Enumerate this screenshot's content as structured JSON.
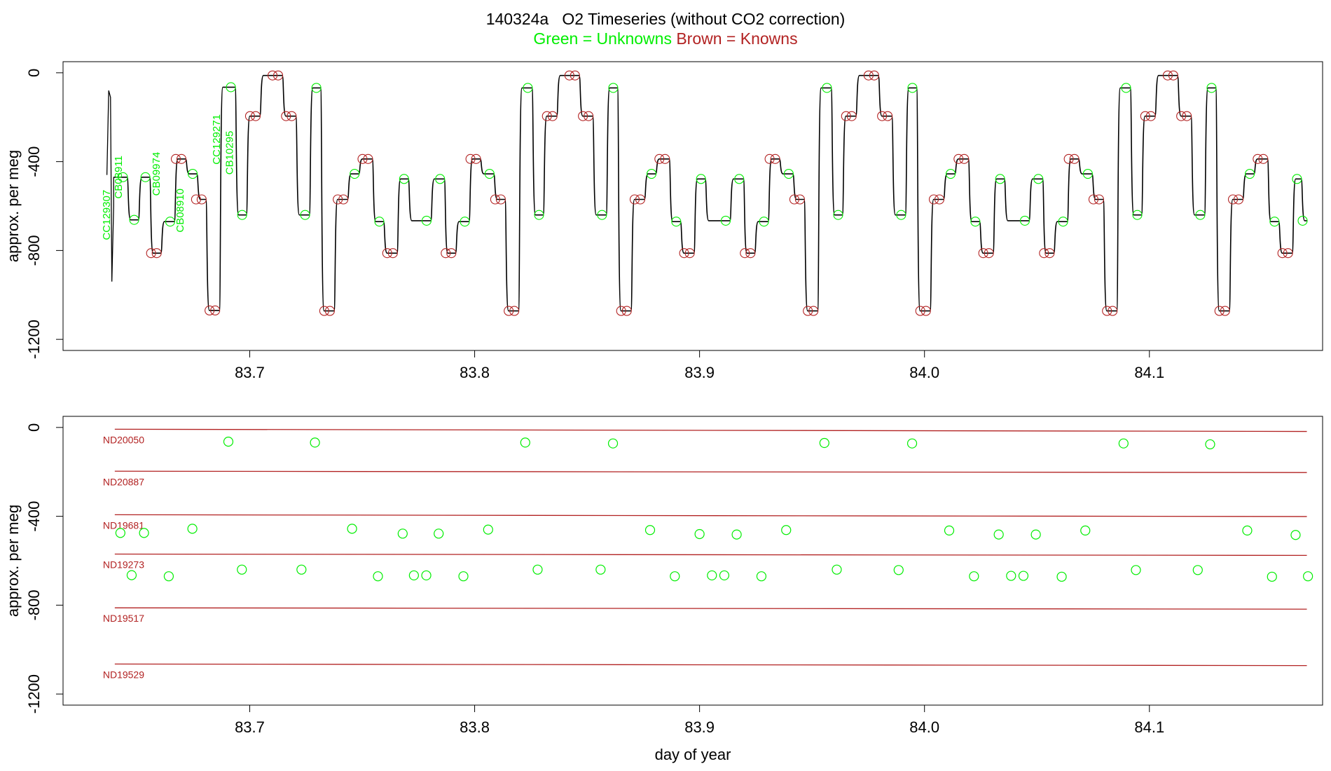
{
  "title": "140324a   O2 Timeseries (without CO2 correction)",
  "subtitle": {
    "unknowns": "Green = Unknowns",
    "knowns": "Brown = Knowns"
  },
  "colors": {
    "unknowns": "#00ee00",
    "knowns": "#b22222",
    "trace": "#000000",
    "axis": "#000000"
  },
  "chart_data": [
    {
      "type": "line",
      "ylabel": "approx. per meg",
      "xlabel": "",
      "xlim": [
        83.617,
        84.177
      ],
      "ylim": [
        -1250,
        50
      ],
      "xticks": [
        83.7,
        83.8,
        83.9,
        84.0,
        84.1
      ],
      "xtick_labels": [
        "83.7",
        "83.8",
        "83.9",
        "84.0",
        "84.1"
      ],
      "yticks": [
        0,
        -400,
        -800,
        -1200
      ],
      "ytick_labels": [
        "0",
        "-400",
        "-800",
        "-1200"
      ],
      "spike": {
        "x_range": [
          83.6365,
          83.6395
        ],
        "y_range": [
          -940,
          -80
        ]
      },
      "steps": [
        {
          "x0": 83.6395,
          "x1": 83.6455,
          "y": -470,
          "kind": "unknown"
        },
        {
          "x0": 83.6455,
          "x1": 83.6505,
          "y": -662,
          "kind": "unknown"
        },
        {
          "x0": 83.6505,
          "x1": 83.6555,
          "y": -470,
          "kind": "unknown"
        },
        {
          "x0": 83.6555,
          "x1": 83.6605,
          "y": -812,
          "kind": "known"
        },
        {
          "x0": 83.6605,
          "x1": 83.6665,
          "y": -670,
          "kind": "unknown"
        },
        {
          "x0": 83.6665,
          "x1": 83.6715,
          "y": -388,
          "kind": "known"
        },
        {
          "x0": 83.6715,
          "x1": 83.6765,
          "y": -455,
          "kind": "unknown"
        },
        {
          "x0": 83.6765,
          "x1": 83.6805,
          "y": -570,
          "kind": "known"
        },
        {
          "x0": 83.6805,
          "x1": 83.6865,
          "y": -1070,
          "kind": "known"
        },
        {
          "x0": 83.6865,
          "x1": 83.6935,
          "y": -65,
          "kind": "unknown"
        },
        {
          "x0": 83.6935,
          "x1": 83.6985,
          "y": -640,
          "kind": "unknown"
        },
        {
          "x0": 83.6985,
          "x1": 83.7045,
          "y": -195,
          "kind": "known"
        },
        {
          "x0": 83.7045,
          "x1": 83.7145,
          "y": -12,
          "kind": "known"
        },
        {
          "x0": 83.7145,
          "x1": 83.7205,
          "y": -195,
          "kind": "known"
        },
        {
          "x0": 83.7205,
          "x1": 83.7265,
          "y": -640,
          "kind": "unknown"
        },
        {
          "x0": 83.7265,
          "x1": 83.7315,
          "y": -68,
          "kind": "unknown"
        },
        {
          "x0": 83.7315,
          "x1": 83.7375,
          "y": -1072,
          "kind": "known"
        },
        {
          "x0": 83.7375,
          "x1": 83.7435,
          "y": -570,
          "kind": "known"
        },
        {
          "x0": 83.7435,
          "x1": 83.7485,
          "y": -455,
          "kind": "unknown"
        },
        {
          "x0": 83.7485,
          "x1": 83.7545,
          "y": -388,
          "kind": "known"
        },
        {
          "x0": 83.7545,
          "x1": 83.7595,
          "y": -670,
          "kind": "unknown"
        },
        {
          "x0": 83.7595,
          "x1": 83.7655,
          "y": -812,
          "kind": "known"
        },
        {
          "x0": 83.7655,
          "x1": 83.7705,
          "y": -478,
          "kind": "unknown"
        },
        {
          "x0": 83.7705,
          "x1": 83.7805,
          "y": -666,
          "kind": "unknown"
        },
        {
          "x0": 83.7805,
          "x1": 83.7865,
          "y": -478,
          "kind": "unknown"
        },
        {
          "x0": 83.7865,
          "x1": 83.7915,
          "y": -812,
          "kind": "known"
        },
        {
          "x0": 83.7915,
          "x1": 83.7975,
          "y": -670,
          "kind": "unknown"
        },
        {
          "x0": 83.7975,
          "x1": 83.8025,
          "y": -388,
          "kind": "known"
        },
        {
          "x0": 83.8025,
          "x1": 83.8085,
          "y": -455,
          "kind": "unknown"
        },
        {
          "x0": 83.8085,
          "x1": 83.8135,
          "y": -570,
          "kind": "known"
        },
        {
          "x0": 83.8135,
          "x1": 83.8195,
          "y": -1072,
          "kind": "known"
        },
        {
          "x0": 83.8195,
          "x1": 83.8255,
          "y": -68,
          "kind": "unknown"
        },
        {
          "x0": 83.8255,
          "x1": 83.8305,
          "y": -640,
          "kind": "unknown"
        },
        {
          "x0": 83.8305,
          "x1": 83.8365,
          "y": -195,
          "kind": "known"
        },
        {
          "x0": 83.8365,
          "x1": 83.8465,
          "y": -12,
          "kind": "known"
        },
        {
          "x0": 83.8465,
          "x1": 83.8525,
          "y": -195,
          "kind": "known"
        },
        {
          "x0": 83.8525,
          "x1": 83.8585,
          "y": -640,
          "kind": "unknown"
        },
        {
          "x0": 83.8585,
          "x1": 83.8635,
          "y": -68,
          "kind": "unknown"
        },
        {
          "x0": 83.8635,
          "x1": 83.8695,
          "y": -1072,
          "kind": "known"
        },
        {
          "x0": 83.8695,
          "x1": 83.8755,
          "y": -570,
          "kind": "known"
        },
        {
          "x0": 83.8755,
          "x1": 83.8805,
          "y": -455,
          "kind": "unknown"
        },
        {
          "x0": 83.8805,
          "x1": 83.8865,
          "y": -388,
          "kind": "known"
        },
        {
          "x0": 83.8865,
          "x1": 83.8915,
          "y": -670,
          "kind": "unknown"
        },
        {
          "x0": 83.8915,
          "x1": 83.8975,
          "y": -812,
          "kind": "known"
        },
        {
          "x0": 83.8975,
          "x1": 83.9025,
          "y": -478,
          "kind": "unknown"
        },
        {
          "x0": 83.9025,
          "x1": 83.9135,
          "y": -666,
          "kind": "unknown"
        },
        {
          "x0": 83.9135,
          "x1": 83.9195,
          "y": -478,
          "kind": "unknown"
        },
        {
          "x0": 83.9195,
          "x1": 83.9245,
          "y": -812,
          "kind": "known"
        },
        {
          "x0": 83.9245,
          "x1": 83.9305,
          "y": -670,
          "kind": "unknown"
        },
        {
          "x0": 83.9305,
          "x1": 83.9355,
          "y": -388,
          "kind": "known"
        },
        {
          "x0": 83.9355,
          "x1": 83.9415,
          "y": -455,
          "kind": "unknown"
        },
        {
          "x0": 83.9415,
          "x1": 83.9465,
          "y": -570,
          "kind": "known"
        },
        {
          "x0": 83.9465,
          "x1": 83.9525,
          "y": -1072,
          "kind": "known"
        },
        {
          "x0": 83.9525,
          "x1": 83.9585,
          "y": -68,
          "kind": "unknown"
        },
        {
          "x0": 83.9585,
          "x1": 83.9635,
          "y": -640,
          "kind": "unknown"
        },
        {
          "x0": 83.9635,
          "x1": 83.9695,
          "y": -195,
          "kind": "known"
        },
        {
          "x0": 83.9695,
          "x1": 83.9795,
          "y": -12,
          "kind": "known"
        },
        {
          "x0": 83.9795,
          "x1": 83.9855,
          "y": -195,
          "kind": "known"
        },
        {
          "x0": 83.9855,
          "x1": 83.9915,
          "y": -640,
          "kind": "unknown"
        },
        {
          "x0": 83.9915,
          "x1": 83.9965,
          "y": -68,
          "kind": "unknown"
        },
        {
          "x0": 83.9965,
          "x1": 84.0025,
          "y": -1072,
          "kind": "known"
        },
        {
          "x0": 84.0025,
          "x1": 84.0085,
          "y": -570,
          "kind": "known"
        },
        {
          "x0": 84.0085,
          "x1": 84.0135,
          "y": -455,
          "kind": "unknown"
        },
        {
          "x0": 84.0135,
          "x1": 84.0195,
          "y": -388,
          "kind": "known"
        },
        {
          "x0": 84.0195,
          "x1": 84.0245,
          "y": -670,
          "kind": "unknown"
        },
        {
          "x0": 84.0245,
          "x1": 84.0305,
          "y": -812,
          "kind": "known"
        },
        {
          "x0": 84.0305,
          "x1": 84.0355,
          "y": -478,
          "kind": "unknown"
        },
        {
          "x0": 84.0355,
          "x1": 84.0465,
          "y": -666,
          "kind": "unknown"
        },
        {
          "x0": 84.0465,
          "x1": 84.0525,
          "y": -478,
          "kind": "unknown"
        },
        {
          "x0": 84.0525,
          "x1": 84.0575,
          "y": -812,
          "kind": "known"
        },
        {
          "x0": 84.0575,
          "x1": 84.0635,
          "y": -670,
          "kind": "unknown"
        },
        {
          "x0": 84.0635,
          "x1": 84.0685,
          "y": -388,
          "kind": "known"
        },
        {
          "x0": 84.0685,
          "x1": 84.0745,
          "y": -455,
          "kind": "unknown"
        },
        {
          "x0": 84.0745,
          "x1": 84.0795,
          "y": -570,
          "kind": "known"
        },
        {
          "x0": 84.0795,
          "x1": 84.0855,
          "y": -1072,
          "kind": "known"
        },
        {
          "x0": 84.0855,
          "x1": 84.0915,
          "y": -68,
          "kind": "unknown"
        },
        {
          "x0": 84.0915,
          "x1": 84.0965,
          "y": -640,
          "kind": "unknown"
        },
        {
          "x0": 84.0965,
          "x1": 84.1025,
          "y": -195,
          "kind": "known"
        },
        {
          "x0": 84.1025,
          "x1": 84.1125,
          "y": -12,
          "kind": "known"
        },
        {
          "x0": 84.1125,
          "x1": 84.1185,
          "y": -195,
          "kind": "known"
        },
        {
          "x0": 84.1185,
          "x1": 84.1245,
          "y": -640,
          "kind": "unknown"
        },
        {
          "x0": 84.1245,
          "x1": 84.1295,
          "y": -68,
          "kind": "unknown"
        },
        {
          "x0": 84.1295,
          "x1": 84.1355,
          "y": -1072,
          "kind": "known"
        },
        {
          "x0": 84.1355,
          "x1": 84.1415,
          "y": -570,
          "kind": "known"
        },
        {
          "x0": 84.1415,
          "x1": 84.1465,
          "y": -455,
          "kind": "unknown"
        },
        {
          "x0": 84.1465,
          "x1": 84.1525,
          "y": -388,
          "kind": "known"
        },
        {
          "x0": 84.1525,
          "x1": 84.1575,
          "y": -670,
          "kind": "unknown"
        },
        {
          "x0": 84.1575,
          "x1": 84.1635,
          "y": -812,
          "kind": "known"
        },
        {
          "x0": 84.1635,
          "x1": 84.1675,
          "y": -478,
          "kind": "unknown"
        },
        {
          "x0": 84.1675,
          "x1": 84.17,
          "y": -666,
          "kind": "unknown"
        }
      ],
      "annotations": [
        {
          "text": "CC129307",
          "x": 83.6378,
          "y": -640
        },
        {
          "text": "CB08911",
          "x": 83.6432,
          "y": -470
        },
        {
          "text": "CB09974",
          "x": 83.66,
          "y": -455
        },
        {
          "text": "CB08910",
          "x": 83.6705,
          "y": -620
        },
        {
          "text": "CC129271",
          "x": 83.6868,
          "y": -300
        },
        {
          "text": "CB10295",
          "x": 83.6925,
          "y": -360
        }
      ]
    },
    {
      "type": "scatter",
      "ylabel": "approx. per meg",
      "xlabel": "day of year",
      "xlim": [
        83.617,
        84.177
      ],
      "ylim": [
        -1250,
        50
      ],
      "xticks": [
        83.7,
        83.8,
        83.9,
        84.0,
        84.1
      ],
      "xtick_labels": [
        "83.7",
        "83.8",
        "83.9",
        "84.0",
        "84.1"
      ],
      "yticks": [
        0,
        -400,
        -800,
        -1200
      ],
      "ytick_labels": [
        "0",
        "-400",
        "-800",
        "-1200"
      ],
      "reference_lines": [
        {
          "name": "ND20050",
          "x0": 83.64,
          "x1": 84.17,
          "y0": -8,
          "y1": -18
        },
        {
          "name": "ND20887",
          "x0": 83.64,
          "x1": 84.17,
          "y0": -197,
          "y1": -203
        },
        {
          "name": "ND19681",
          "x0": 83.64,
          "x1": 84.17,
          "y0": -393,
          "y1": -401
        },
        {
          "name": "ND19273",
          "x0": 83.64,
          "x1": 84.17,
          "y0": -570,
          "y1": -576
        },
        {
          "name": "ND19517",
          "x0": 83.64,
          "x1": 84.17,
          "y0": -812,
          "y1": -818
        },
        {
          "name": "ND19529",
          "x0": 83.64,
          "x1": 84.17,
          "y0": -1065,
          "y1": -1072
        }
      ],
      "points": [
        {
          "x": 83.6425,
          "y": -475
        },
        {
          "x": 83.6475,
          "y": -665
        },
        {
          "x": 83.653,
          "y": -475
        },
        {
          "x": 83.664,
          "y": -670
        },
        {
          "x": 83.6745,
          "y": -456
        },
        {
          "x": 83.6905,
          "y": -64
        },
        {
          "x": 83.6965,
          "y": -640
        },
        {
          "x": 83.723,
          "y": -640
        },
        {
          "x": 83.729,
          "y": -68
        },
        {
          "x": 83.7455,
          "y": -456
        },
        {
          "x": 83.757,
          "y": -670
        },
        {
          "x": 83.768,
          "y": -478
        },
        {
          "x": 83.773,
          "y": -666
        },
        {
          "x": 83.7785,
          "y": -666
        },
        {
          "x": 83.784,
          "y": -478
        },
        {
          "x": 83.795,
          "y": -670
        },
        {
          "x": 83.806,
          "y": -460
        },
        {
          "x": 83.8225,
          "y": -68
        },
        {
          "x": 83.828,
          "y": -640
        },
        {
          "x": 83.856,
          "y": -640
        },
        {
          "x": 83.8615,
          "y": -72
        },
        {
          "x": 83.878,
          "y": -462
        },
        {
          "x": 83.889,
          "y": -670
        },
        {
          "x": 83.9,
          "y": -480
        },
        {
          "x": 83.9055,
          "y": -666
        },
        {
          "x": 83.911,
          "y": -666
        },
        {
          "x": 83.9165,
          "y": -482
        },
        {
          "x": 83.9275,
          "y": -670
        },
        {
          "x": 83.9385,
          "y": -462
        },
        {
          "x": 83.9555,
          "y": -70
        },
        {
          "x": 83.961,
          "y": -640
        },
        {
          "x": 83.9885,
          "y": -642
        },
        {
          "x": 83.9945,
          "y": -72
        },
        {
          "x": 84.011,
          "y": -464
        },
        {
          "x": 84.022,
          "y": -670
        },
        {
          "x": 84.033,
          "y": -482
        },
        {
          "x": 84.0385,
          "y": -668
        },
        {
          "x": 84.044,
          "y": -668
        },
        {
          "x": 84.0495,
          "y": -482
        },
        {
          "x": 84.061,
          "y": -672
        },
        {
          "x": 84.0715,
          "y": -464
        },
        {
          "x": 84.0885,
          "y": -72
        },
        {
          "x": 84.094,
          "y": -642
        },
        {
          "x": 84.1215,
          "y": -642
        },
        {
          "x": 84.127,
          "y": -76
        },
        {
          "x": 84.1435,
          "y": -464
        },
        {
          "x": 84.1545,
          "y": -672
        },
        {
          "x": 84.165,
          "y": -484
        },
        {
          "x": 84.1705,
          "y": -670
        }
      ]
    }
  ]
}
